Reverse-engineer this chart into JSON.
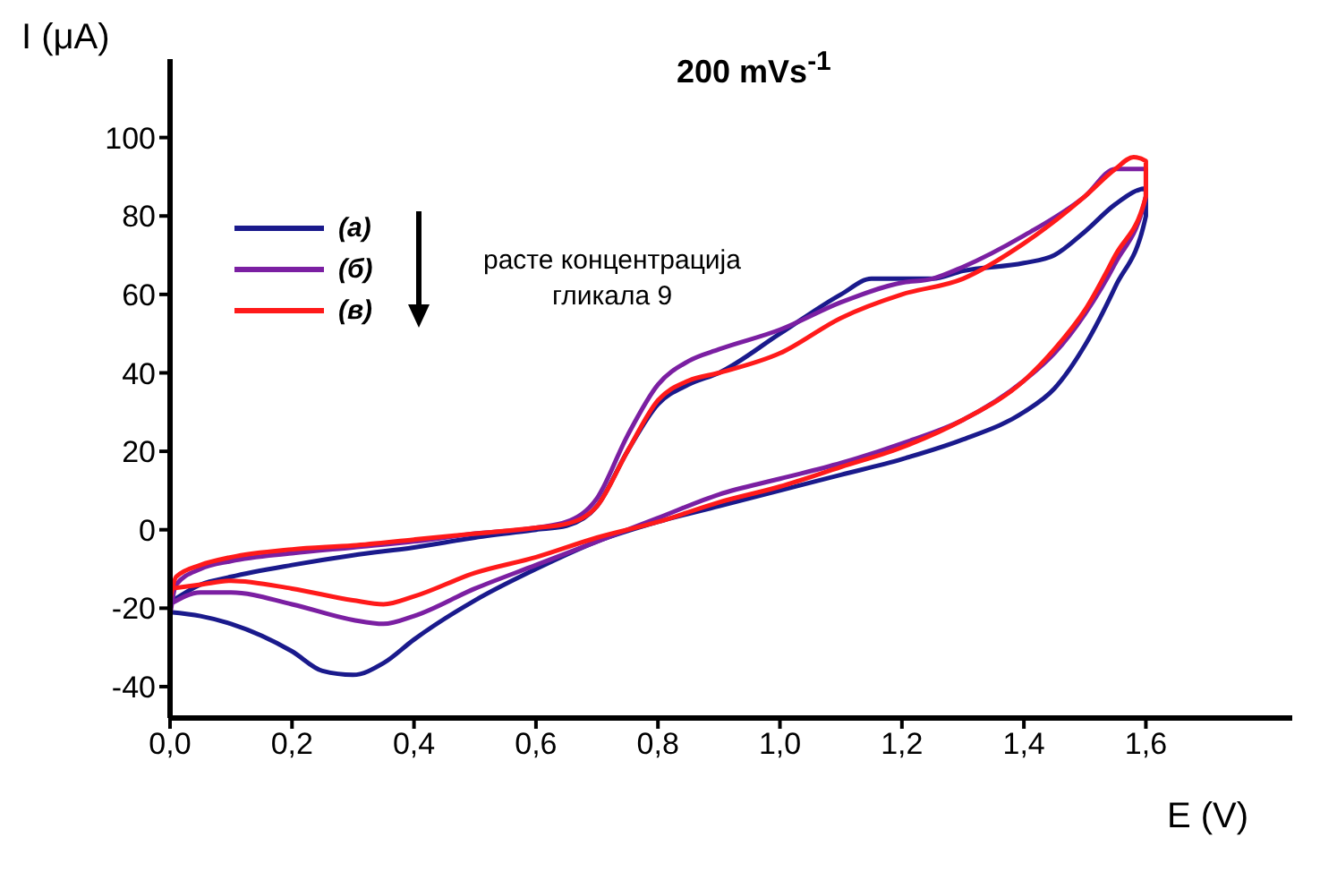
{
  "chart_data": {
    "type": "line",
    "title": "200 mVs$^{-1}$",
    "xlabel": "E (V)",
    "ylabel": "I (μA)",
    "xlim": [
      0,
      1.84
    ],
    "ylim": [
      -48,
      120
    ],
    "xticks": [
      {
        "value": 0,
        "label": "0,0"
      },
      {
        "value": 0.2,
        "label": "0,2"
      },
      {
        "value": 0.4,
        "label": "0,4"
      },
      {
        "value": 0.6,
        "label": "0,6"
      },
      {
        "value": 0.8,
        "label": "0,8"
      },
      {
        "value": 1.0,
        "label": "1,0"
      },
      {
        "value": 1.2,
        "label": "1,2"
      },
      {
        "value": 1.4,
        "label": "1,4"
      },
      {
        "value": 1.6,
        "label": "1,6"
      }
    ],
    "yticks": [
      -40,
      -20,
      0,
      20,
      40,
      60,
      80,
      100
    ],
    "grid": false,
    "legend": "top left",
    "annotations": [
      "расте концентрација гликала 9"
    ],
    "series": [
      {
        "name": "(а)",
        "color": "#1a1a8c",
        "x": [
          0.005,
          0.05,
          0.1,
          0.2,
          0.3,
          0.4,
          0.5,
          0.6,
          0.65,
          0.7,
          0.75,
          0.8,
          0.85,
          0.9,
          1.0,
          1.1,
          1.15,
          1.2,
          1.25,
          1.3,
          1.4,
          1.45,
          1.5,
          1.55,
          1.6,
          1.6,
          1.55,
          1.5,
          1.45,
          1.4,
          1.3,
          1.2,
          1.1,
          1.0,
          0.9,
          0.8,
          0.7,
          0.6,
          0.5,
          0.4,
          0.35,
          0.3,
          0.25,
          0.2,
          0.1,
          0.05,
          0
        ],
        "values": [
          -18,
          -14,
          -12,
          -9,
          -6.5,
          -4.5,
          -2,
          0,
          1,
          6,
          20,
          32,
          37,
          40,
          50,
          60,
          64,
          64,
          64,
          66,
          68,
          70,
          76,
          83,
          87,
          80,
          62,
          47,
          36,
          30,
          23,
          18,
          14,
          10,
          6,
          2,
          -3,
          -10,
          -18,
          -28,
          -34,
          -37,
          -36,
          -31,
          -24,
          -22,
          -21
        ]
      },
      {
        "name": "(б)",
        "color": "#7b1fa2",
        "x": [
          0,
          0.01,
          0.05,
          0.1,
          0.2,
          0.3,
          0.4,
          0.5,
          0.6,
          0.65,
          0.7,
          0.75,
          0.8,
          0.85,
          0.9,
          1.0,
          1.1,
          1.2,
          1.25,
          1.3,
          1.4,
          1.5,
          1.55,
          1.6,
          1.6,
          1.55,
          1.5,
          1.45,
          1.4,
          1.3,
          1.2,
          1.1,
          1.0,
          0.9,
          0.8,
          0.7,
          0.6,
          0.5,
          0.4,
          0.35,
          0.3,
          0.2,
          0.1,
          0.05,
          0
        ],
        "values": [
          -22,
          -14,
          -10,
          -8,
          -6,
          -4.5,
          -3,
          -1,
          0.5,
          2,
          8,
          24,
          37,
          43,
          46,
          51,
          58,
          63,
          64,
          67,
          75,
          85,
          92,
          92,
          85,
          68,
          55,
          45,
          38,
          28,
          22,
          17,
          13,
          9,
          3,
          -3,
          -9,
          -15,
          -22,
          -24,
          -23,
          -19,
          -16,
          -16,
          -19
        ]
      },
      {
        "name": "(в)",
        "color": "#ff1a1a",
        "x": [
          0,
          0.01,
          0.05,
          0.1,
          0.2,
          0.3,
          0.4,
          0.5,
          0.6,
          0.65,
          0.7,
          0.75,
          0.8,
          0.85,
          0.9,
          1.0,
          1.1,
          1.2,
          1.3,
          1.4,
          1.5,
          1.55,
          1.58,
          1.6,
          1.6,
          1.55,
          1.5,
          1.45,
          1.4,
          1.3,
          1.2,
          1.1,
          1.0,
          0.9,
          0.8,
          0.7,
          0.6,
          0.5,
          0.4,
          0.35,
          0.3,
          0.2,
          0.1,
          0.05,
          0
        ],
        "values": [
          -18,
          -12,
          -9,
          -7,
          -5,
          -4,
          -2.5,
          -1,
          0.5,
          1.5,
          6,
          20,
          33,
          38,
          40,
          45,
          54,
          60,
          64,
          73,
          85,
          92,
          95,
          94,
          85,
          70,
          56,
          46,
          38,
          28,
          21,
          16,
          11,
          7,
          2,
          -2,
          -7,
          -11,
          -17,
          -19,
          -18,
          -15,
          -13,
          -14,
          -15
        ]
      }
    ]
  }
}
